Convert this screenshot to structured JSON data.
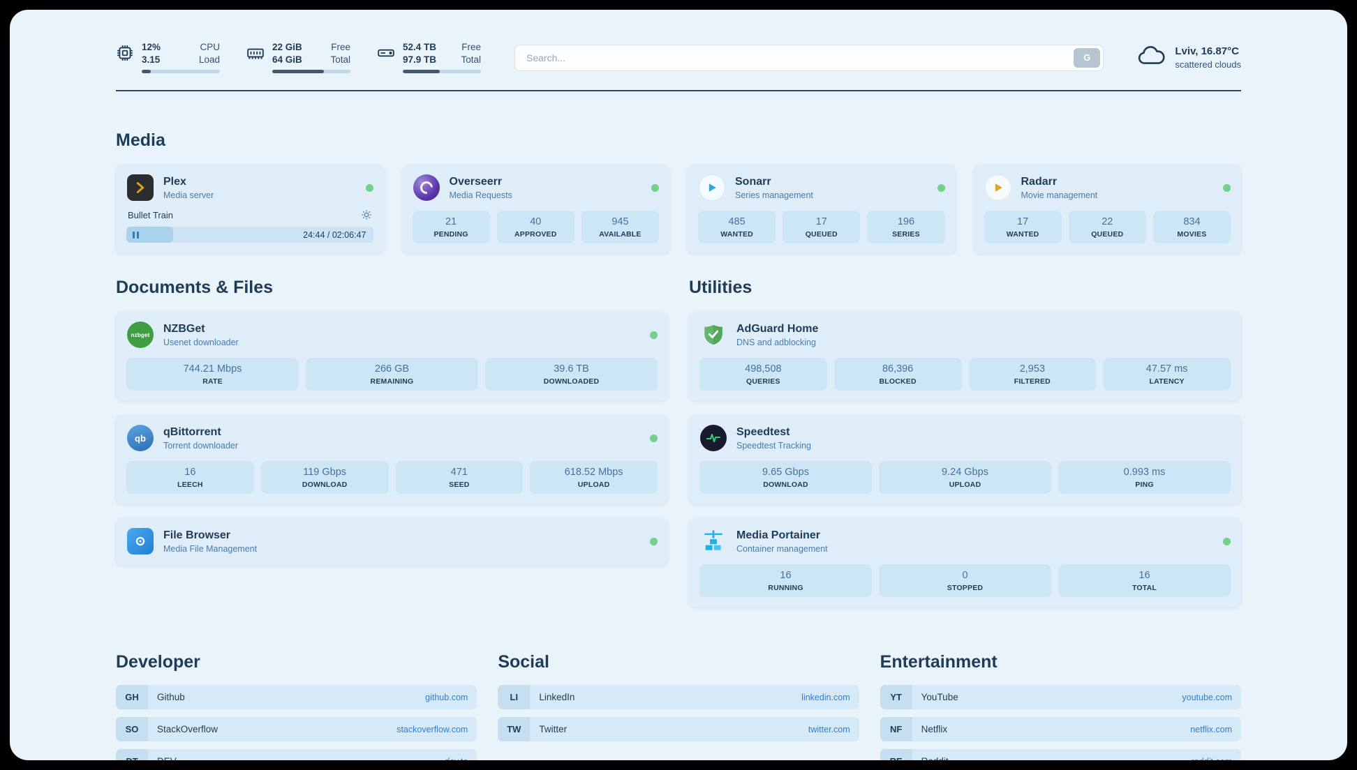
{
  "topbar": {
    "resources": [
      {
        "icon": "cpu-icon",
        "values": [
          "12%",
          "3.15"
        ],
        "labels": [
          "CPU",
          "Load"
        ],
        "percent": 12
      },
      {
        "icon": "memory-icon",
        "values": [
          "22 GiB",
          "64 GiB"
        ],
        "labels": [
          "Free",
          "Total"
        ],
        "percent": 66
      },
      {
        "icon": "disk-icon",
        "values": [
          "52.4 TB",
          "97.9 TB"
        ],
        "labels": [
          "Free",
          "Total"
        ],
        "percent": 47
      }
    ],
    "search": {
      "placeholder": "Search...",
      "button_label": "G"
    },
    "weather": {
      "location": "Lviv, 16.87°C",
      "condition": "scattered clouds"
    }
  },
  "media": {
    "title": "Media",
    "plex": {
      "name": "Plex",
      "subtitle": "Media server",
      "now_playing": "Bullet Train",
      "time_display": "24:44 / 02:06:47",
      "progress_percent": 19
    },
    "overseerr": {
      "name": "Overseerr",
      "subtitle": "Media Requests",
      "stats": [
        {
          "value": "21",
          "label": "PENDING"
        },
        {
          "value": "40",
          "label": "APPROVED"
        },
        {
          "value": "945",
          "label": "AVAILABLE"
        }
      ]
    },
    "sonarr": {
      "name": "Sonarr",
      "subtitle": "Series management",
      "stats": [
        {
          "value": "485",
          "label": "WANTED"
        },
        {
          "value": "17",
          "label": "QUEUED"
        },
        {
          "value": "196",
          "label": "SERIES"
        }
      ]
    },
    "radarr": {
      "name": "Radarr",
      "subtitle": "Movie management",
      "stats": [
        {
          "value": "17",
          "label": "WANTED"
        },
        {
          "value": "22",
          "label": "QUEUED"
        },
        {
          "value": "834",
          "label": "MOVIES"
        }
      ]
    }
  },
  "documents": {
    "title": "Documents & Files",
    "nzbget": {
      "name": "NZBGet",
      "subtitle": "Usenet downloader",
      "stats": [
        {
          "value": "744.21 Mbps",
          "label": "RATE"
        },
        {
          "value": "266 GB",
          "label": "REMAINING"
        },
        {
          "value": "39.6 TB",
          "label": "DOWNLOADED"
        }
      ]
    },
    "qbittorrent": {
      "name": "qBittorrent",
      "subtitle": "Torrent downloader",
      "stats": [
        {
          "value": "16",
          "label": "LEECH"
        },
        {
          "value": "119 Gbps",
          "label": "DOWNLOAD"
        },
        {
          "value": "471",
          "label": "SEED"
        },
        {
          "value": "618.52 Mbps",
          "label": "UPLOAD"
        }
      ]
    },
    "filebrowser": {
      "name": "File Browser",
      "subtitle": "Media File Management"
    }
  },
  "utilities": {
    "title": "Utilities",
    "adguard": {
      "name": "AdGuard Home",
      "subtitle": "DNS and adblocking",
      "stats": [
        {
          "value": "498,508",
          "label": "QUERIES"
        },
        {
          "value": "86,396",
          "label": "BLOCKED"
        },
        {
          "value": "2,953",
          "label": "FILTERED"
        },
        {
          "value": "47.57 ms",
          "label": "LATENCY"
        }
      ]
    },
    "speedtest": {
      "name": "Speedtest",
      "subtitle": "Speedtest Tracking",
      "stats": [
        {
          "value": "9.65 Gbps",
          "label": "DOWNLOAD"
        },
        {
          "value": "9.24 Gbps",
          "label": "UPLOAD"
        },
        {
          "value": "0.993 ms",
          "label": "PING"
        }
      ]
    },
    "portainer": {
      "name": "Media Portainer",
      "subtitle": "Container management",
      "stats": [
        {
          "value": "16",
          "label": "RUNNING"
        },
        {
          "value": "0",
          "label": "STOPPED"
        },
        {
          "value": "16",
          "label": "TOTAL"
        }
      ]
    }
  },
  "bookmarks": [
    {
      "title": "Developer",
      "items": [
        {
          "abbr": "GH",
          "name": "Github",
          "url": "github.com"
        },
        {
          "abbr": "SO",
          "name": "StackOverflow",
          "url": "stackoverflow.com"
        },
        {
          "abbr": "DT",
          "name": "DEV",
          "url": "dev.to"
        }
      ]
    },
    {
      "title": "Social",
      "items": [
        {
          "abbr": "LI",
          "name": "LinkedIn",
          "url": "linkedin.com"
        },
        {
          "abbr": "TW",
          "name": "Twitter",
          "url": "twitter.com"
        }
      ]
    },
    {
      "title": "Entertainment",
      "items": [
        {
          "abbr": "YT",
          "name": "YouTube",
          "url": "youtube.com"
        },
        {
          "abbr": "NF",
          "name": "Netflix",
          "url": "netflix.com"
        },
        {
          "abbr": "RE",
          "name": "Reddit",
          "url": "reddit.com"
        }
      ]
    }
  ],
  "colors": {
    "status_green": "#74d18c",
    "link_blue": "#2d7fd4",
    "accent_navy": "#1e3c57"
  }
}
